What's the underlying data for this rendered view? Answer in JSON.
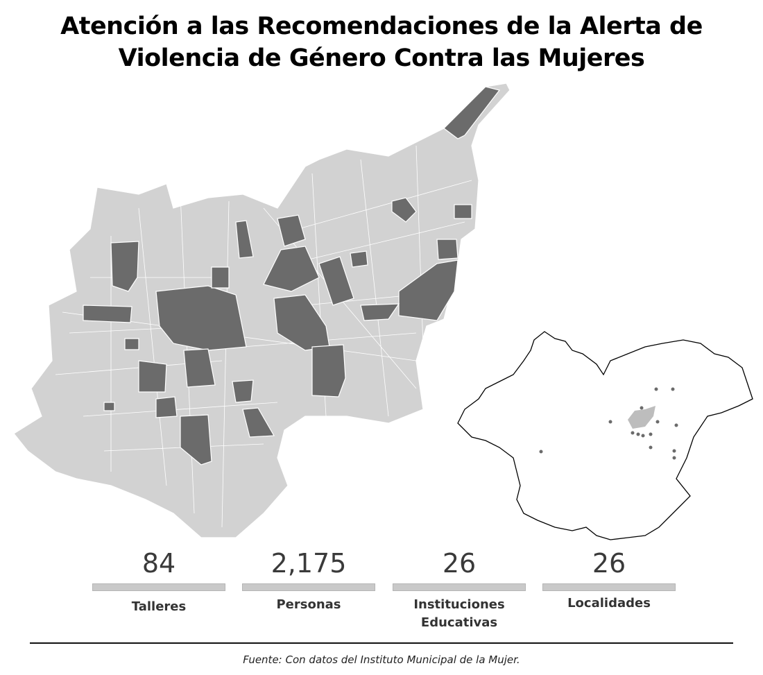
{
  "header": {
    "title_lines": [
      "Atención a las Recomendaciones de la Alerta de",
      "Violencia de Género Contra las Mujeres"
    ]
  },
  "stats": [
    {
      "value": "84",
      "label": "Talleres"
    },
    {
      "value": "2,175",
      "label": "Personas"
    },
    {
      "value": "26",
      "label": "Instituciones Educativas"
    },
    {
      "value": "26",
      "label": "Localidades"
    }
  ],
  "source": "Fuente: Con datos del Instituto Municipal de la Mujer."
}
